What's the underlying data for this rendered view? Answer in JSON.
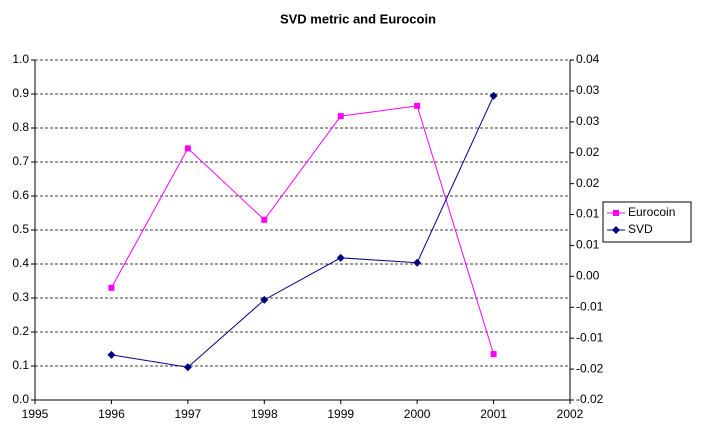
{
  "chart_data": {
    "type": "line",
    "title": "SVD metric and Eurocoin",
    "x": [
      1996,
      1997,
      1998,
      1999,
      2000,
      2001
    ],
    "xlim": [
      1995,
      2002
    ],
    "xticks": [
      1995,
      1996,
      1997,
      1998,
      1999,
      2000,
      2001,
      2002
    ],
    "ylim": [
      0,
      1.0
    ],
    "yticks": [
      {
        "value": 0,
        "label": "0.0"
      },
      0.1,
      0.2,
      0.3,
      0.4,
      0.5,
      0.6,
      0.7,
      0.8,
      0.9,
      {
        "value": 1.0,
        "label": "1.0"
      }
    ],
    "y2lim": [
      -0.02,
      0.035
    ],
    "y2ticks": [
      -0.02,
      {
        "value": -0.015,
        "label": "-0.02"
      },
      -0.01,
      {
        "value": -0.005,
        "label": "-0.01"
      },
      {
        "value": 0,
        "label": "0.00"
      },
      {
        "value": 0.005,
        "label": "0.01"
      },
      0.01,
      {
        "value": 0.015,
        "label": "0.02"
      },
      0.02,
      {
        "value": 0.025,
        "label": "0.03"
      },
      0.03,
      {
        "value": 0.035,
        "label": "0.04"
      }
    ],
    "grid": true,
    "legend": "right",
    "series": [
      {
        "name": "Eurocoin",
        "color": "#ff00ff",
        "marker": "square",
        "values": [
          0.33,
          0.74,
          0.53,
          0.835,
          0.865,
          0.135
        ]
      },
      {
        "name": "SVD",
        "color": "#000080",
        "marker": "diamond",
        "axis": "y2",
        "values": [
          -0.0127,
          -0.0147,
          -0.0038,
          0.003,
          0.0022,
          0.0292
        ]
      }
    ]
  }
}
